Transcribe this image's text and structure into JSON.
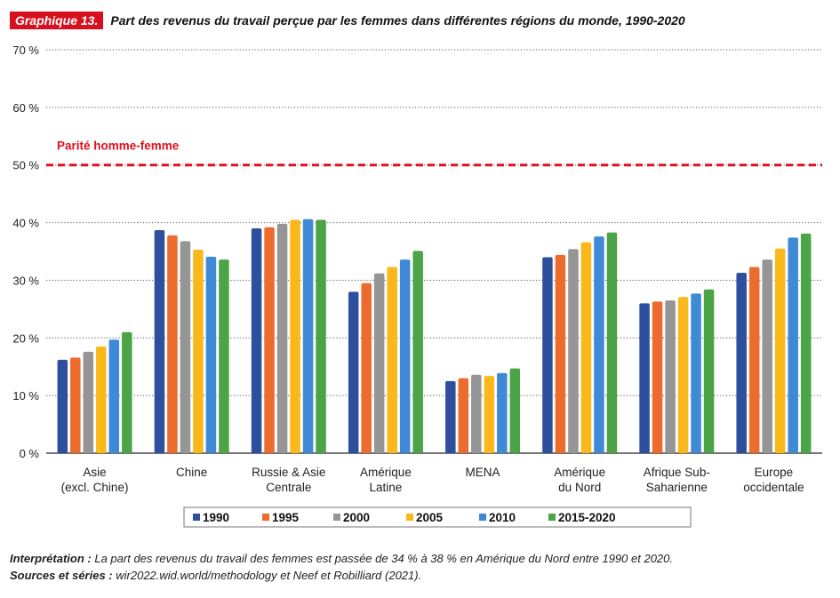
{
  "header": {
    "badge": "Graphique 13.",
    "title": "Part des revenus du travail perçue par les femmes dans différentes régions du monde, 1990-2020"
  },
  "footer": {
    "interp_label": "Interprétation :",
    "interp_text": "La part des revenus du travail des femmes est passée de 34 % à 38 % en Amérique du Nord entre 1990 et 2020.",
    "sources_label": "Sources et séries :",
    "sources_text": "wir2022.wid.world/methodology et Neef et Robilliard (2021)."
  },
  "chart_data": {
    "type": "bar",
    "categories": [
      [
        "Asie",
        "(excl. Chine)"
      ],
      [
        "Chine"
      ],
      [
        "Russie & Asie",
        "Centrale"
      ],
      [
        "Amérique",
        "Latine"
      ],
      [
        "MENA"
      ],
      [
        "Amérique",
        "du Nord"
      ],
      [
        "Afrique Sub-",
        "Saharienne"
      ],
      [
        "Europe",
        "occidentale"
      ]
    ],
    "series": [
      {
        "name": "1990",
        "color": "#2e4f9e",
        "values": [
          16.2,
          38.7,
          39.0,
          28.0,
          12.5,
          34.0,
          26.0,
          31.3
        ]
      },
      {
        "name": "1995",
        "color": "#ec6b2d",
        "values": [
          16.6,
          37.8,
          39.2,
          29.5,
          13.0,
          34.4,
          26.3,
          32.3
        ]
      },
      {
        "name": "2000",
        "color": "#959595",
        "values": [
          17.6,
          36.8,
          39.8,
          31.2,
          13.6,
          35.4,
          26.5,
          33.6
        ]
      },
      {
        "name": "2005",
        "color": "#fbb81b",
        "values": [
          18.5,
          35.3,
          40.5,
          32.3,
          13.4,
          36.6,
          27.1,
          35.5
        ]
      },
      {
        "name": "2010",
        "color": "#3e8ad6",
        "values": [
          19.7,
          34.1,
          40.6,
          33.6,
          13.9,
          37.6,
          27.7,
          37.4
        ]
      },
      {
        "name": "2015-2020",
        "color": "#4ba446",
        "values": [
          21.0,
          33.6,
          40.5,
          35.1,
          14.7,
          38.3,
          28.4,
          38.1
        ]
      }
    ],
    "ylim": [
      0,
      70
    ],
    "yticks": [
      0,
      10,
      20,
      30,
      40,
      50,
      60,
      70
    ],
    "ytick_suffix": " %",
    "reference_line": {
      "value": 50,
      "label": "Parité homme-femme",
      "color": "#e0101f"
    },
    "grid": "horizontal dotted",
    "legend_position": "bottom"
  }
}
